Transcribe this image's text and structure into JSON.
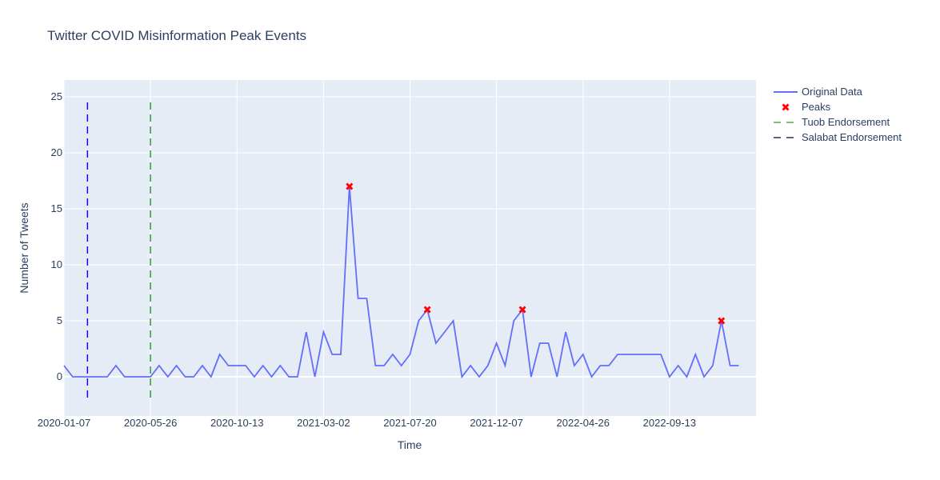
{
  "chart_data": {
    "type": "line",
    "title": "Twitter COVID Misinformation Peak Events",
    "xlabel": "Time",
    "ylabel": "Number of Tweets",
    "x_tick_labels": [
      "2020-01-07",
      "2020-05-26",
      "2020-10-13",
      "2021-03-02",
      "2021-07-20",
      "2021-12-07",
      "2022-04-26",
      "2022-09-13"
    ],
    "x_tick_dates": [
      "2020-01-07",
      "2020-05-26",
      "2020-10-13",
      "2021-03-02",
      "2021-07-20",
      "2021-12-07",
      "2022-04-26",
      "2022-09-13"
    ],
    "xlim": [
      "2020-01-07",
      "2023-01-31"
    ],
    "y_ticks": [
      0,
      5,
      10,
      15,
      20,
      25
    ],
    "ylim": [
      -3.5,
      26.5
    ],
    "grid": true,
    "legend_position": "top-right",
    "series": [
      {
        "name": "Original Data",
        "color": "#636efa",
        "style": "line",
        "x": [
          "2020-01-07",
          "2020-01-21",
          "2020-02-04",
          "2020-02-18",
          "2020-03-03",
          "2020-03-17",
          "2020-03-31",
          "2020-04-14",
          "2020-04-28",
          "2020-05-12",
          "2020-05-26",
          "2020-06-09",
          "2020-06-23",
          "2020-07-07",
          "2020-07-21",
          "2020-08-04",
          "2020-08-18",
          "2020-09-01",
          "2020-09-15",
          "2020-09-29",
          "2020-10-13",
          "2020-10-27",
          "2020-11-10",
          "2020-11-24",
          "2020-12-08",
          "2020-12-22",
          "2021-01-05",
          "2021-01-19",
          "2021-02-02",
          "2021-02-16",
          "2021-03-02",
          "2021-03-16",
          "2021-03-30",
          "2021-04-13",
          "2021-04-27",
          "2021-05-11",
          "2021-05-25",
          "2021-06-08",
          "2021-06-22",
          "2021-07-06",
          "2021-07-20",
          "2021-08-03",
          "2021-08-17",
          "2021-08-31",
          "2021-09-14",
          "2021-09-28",
          "2021-10-12",
          "2021-10-26",
          "2021-11-09",
          "2021-11-23",
          "2021-12-07",
          "2021-12-21",
          "2022-01-04",
          "2022-01-18",
          "2022-02-01",
          "2022-02-15",
          "2022-03-01",
          "2022-03-15",
          "2022-03-29",
          "2022-04-12",
          "2022-04-26",
          "2022-05-10",
          "2022-05-24",
          "2022-06-07",
          "2022-06-21",
          "2022-07-05",
          "2022-07-19",
          "2022-08-02",
          "2022-08-16",
          "2022-08-30",
          "2022-09-13",
          "2022-09-27",
          "2022-10-11",
          "2022-10-25",
          "2022-11-08",
          "2022-11-22",
          "2022-12-06",
          "2022-12-20",
          "2023-01-03"
        ],
        "y": [
          1,
          0,
          0,
          0,
          0,
          0,
          1,
          0,
          0,
          0,
          0,
          1,
          0,
          1,
          0,
          0,
          1,
          0,
          2,
          1,
          1,
          1,
          0,
          1,
          0,
          1,
          0,
          0,
          4,
          0,
          4,
          2,
          2,
          17,
          7,
          7,
          1,
          1,
          2,
          1,
          2,
          5,
          6,
          3,
          4,
          5,
          0,
          1,
          0,
          1,
          3,
          1,
          5,
          6,
          0,
          3,
          3,
          0,
          4,
          1,
          2,
          0,
          1,
          1,
          2,
          2,
          2,
          2,
          2,
          2,
          0,
          1,
          0,
          2,
          0,
          1,
          5,
          1,
          1
        ]
      },
      {
        "name": "Peaks",
        "color": "#ff0000",
        "style": "markers-x",
        "x": [
          "2021-04-13",
          "2021-08-17",
          "2022-01-18",
          "2022-12-06"
        ],
        "y": [
          17,
          6,
          6,
          5
        ]
      }
    ],
    "vertical_lines": [
      {
        "name": "Tuob Endorsement",
        "color": "#2ca02c",
        "legend_color": "#2ca02c",
        "x": "2020-05-26",
        "y_range": [
          -2,
          24.5
        ]
      },
      {
        "name": "Salabat Endorsement",
        "color": "#1f00ff",
        "legend_color": "#000033",
        "x": "2020-02-14",
        "y_range": [
          -2,
          24.5
        ]
      }
    ]
  }
}
